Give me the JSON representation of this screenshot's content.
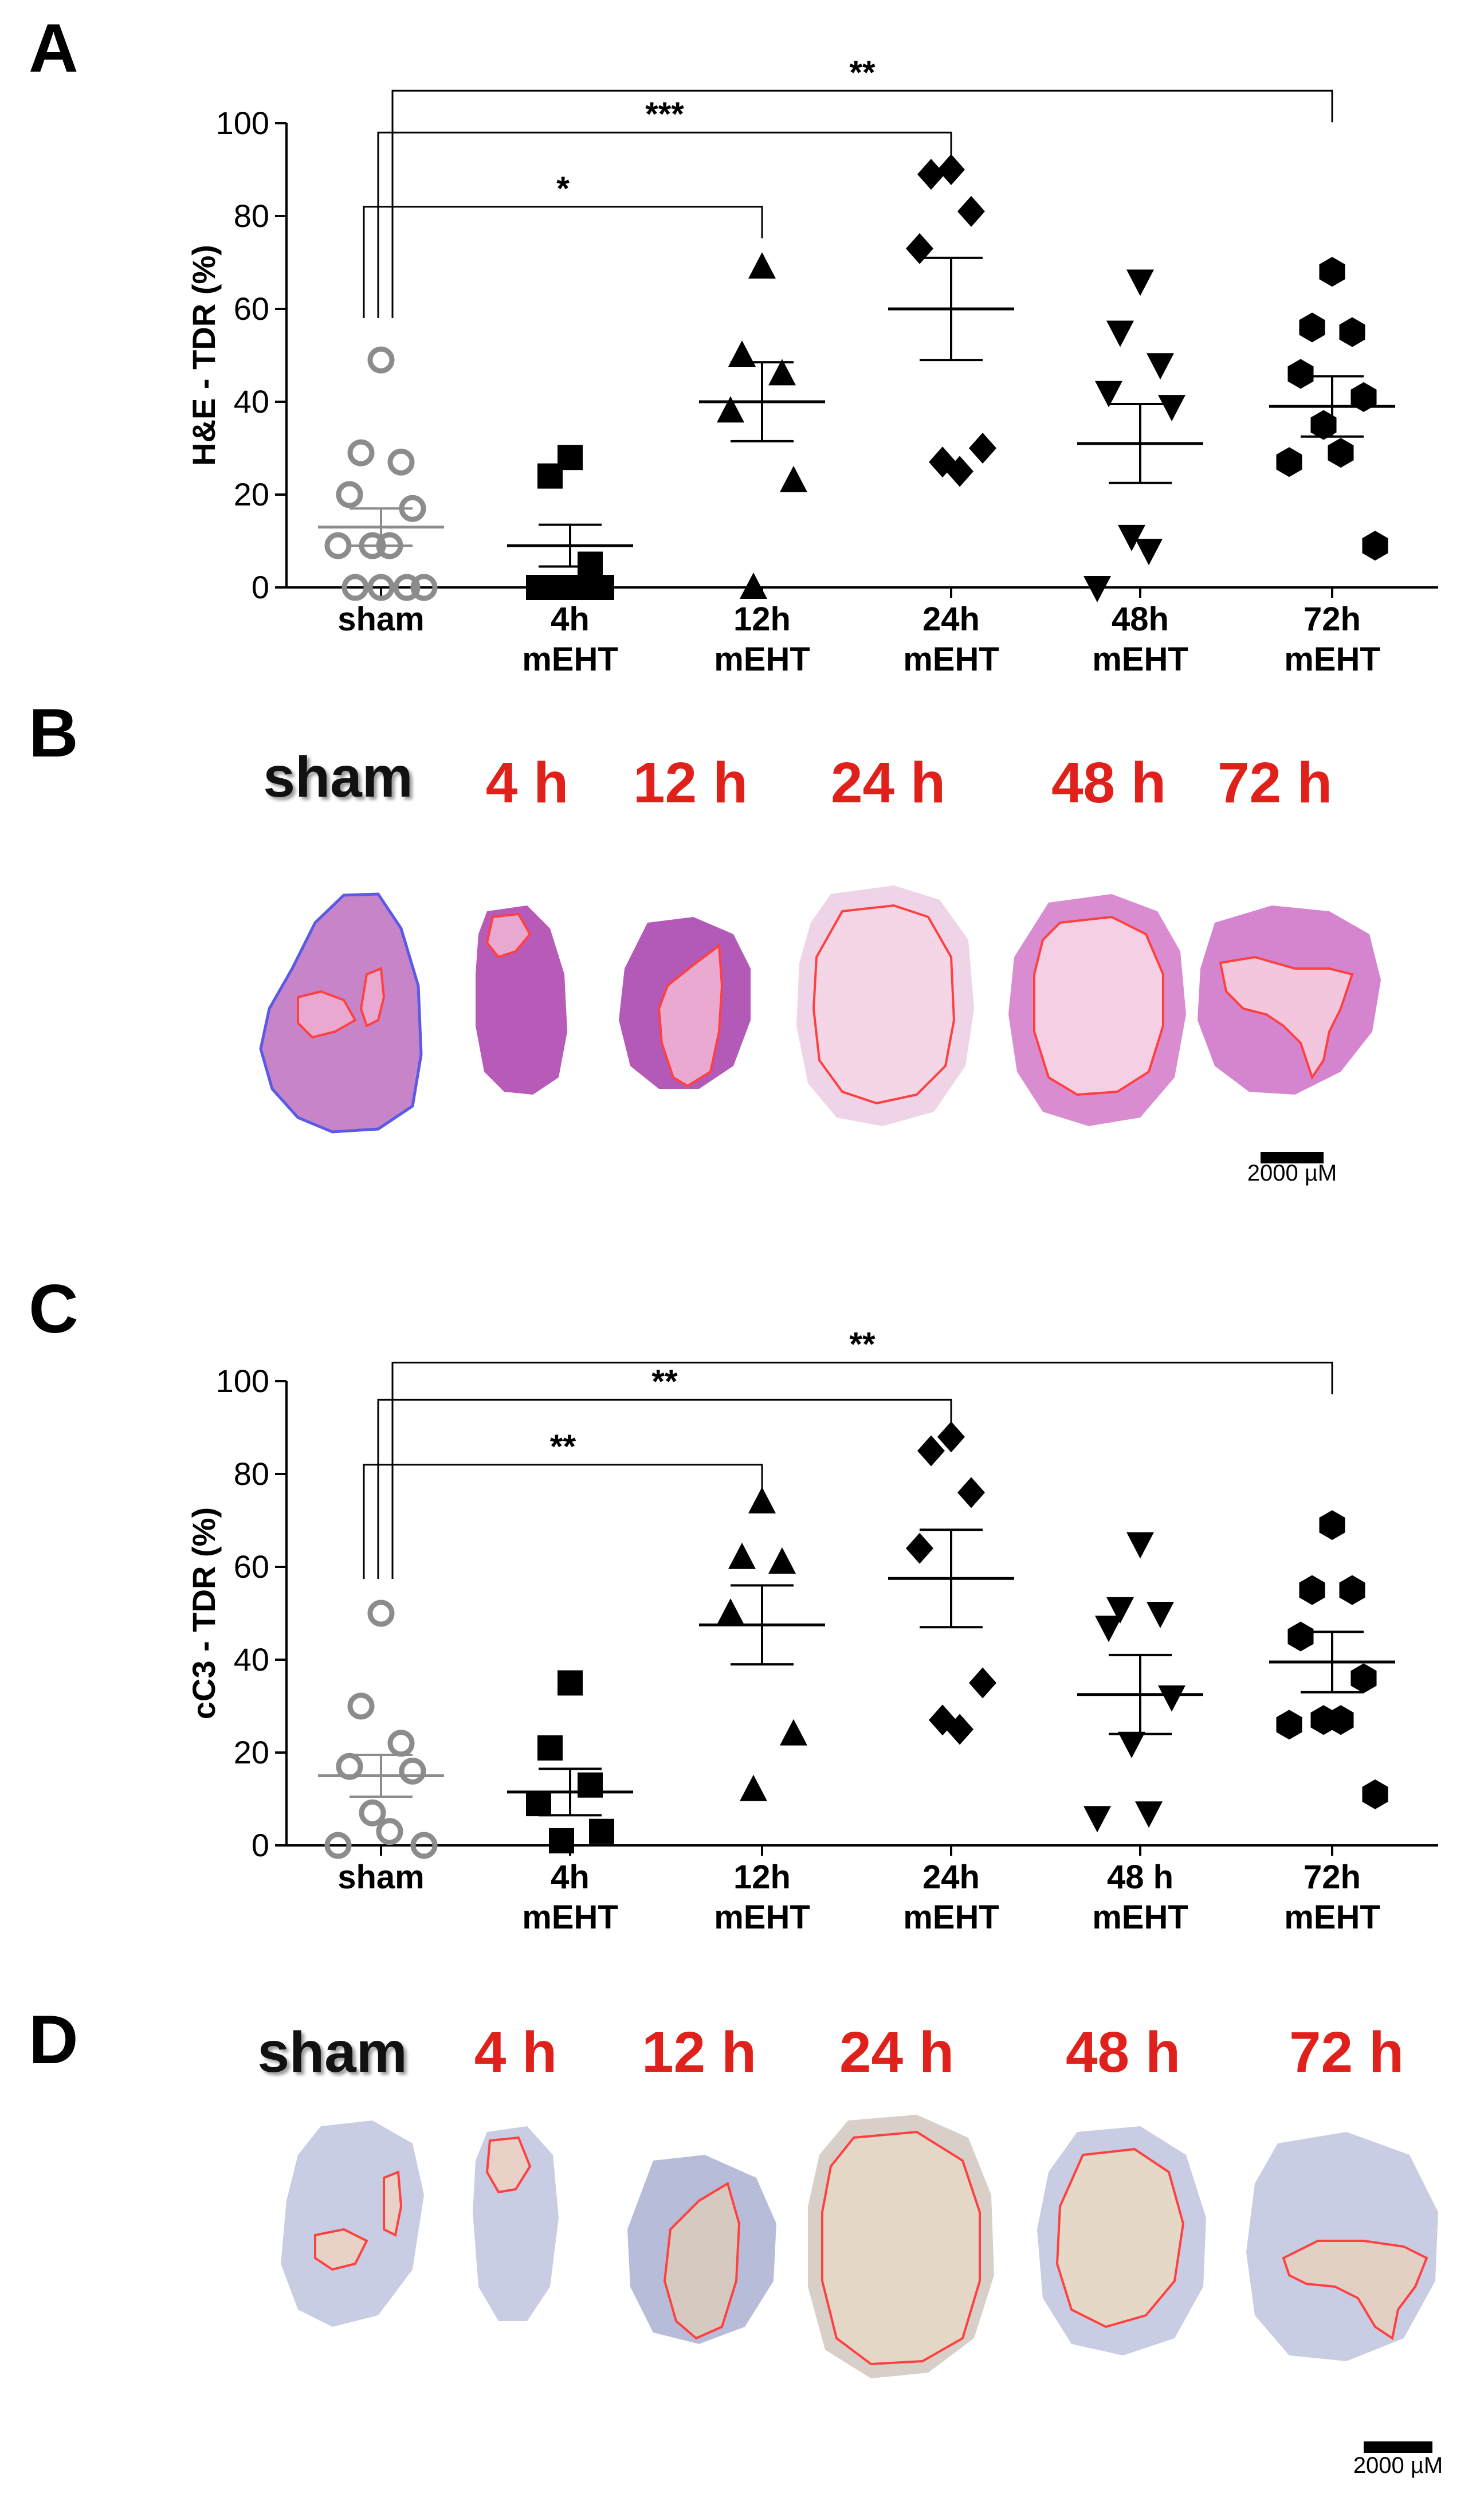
{
  "panels": {
    "a": "A",
    "b": "B",
    "c": "C",
    "d": "D"
  },
  "colors": {
    "sham": "#8c8c8c",
    "treated": "#000000",
    "time_red": "#e0201b",
    "time_black": "#111111",
    "outline_red": "#ff4040",
    "outline_blue": "#5a5ae6"
  },
  "tissue_labels": {
    "b": [
      "sham",
      "4 h",
      "12 h",
      "24 h",
      "48 h",
      "72 h"
    ],
    "d": [
      "sham",
      "4 h",
      "12 h",
      "24 h",
      "48 h",
      "72 h"
    ]
  },
  "scale_bars": {
    "b": "2000 µM",
    "d": "2000 µM"
  },
  "chart_data": [
    {
      "type": "scatter",
      "panel": "A",
      "ylabel": "H&E - TDR (%)",
      "ylim": [
        0,
        100
      ],
      "yticks": [
        0,
        20,
        40,
        60,
        80,
        100
      ],
      "categories": [
        {
          "line1": "sham",
          "line2": ""
        },
        {
          "line1": "4h",
          "line2": "mEHT"
        },
        {
          "line1": "12h",
          "line2": "mEHT"
        },
        {
          "line1": "24h",
          "line2": "mEHT"
        },
        {
          "line1": "48h",
          "line2": "mEHT"
        },
        {
          "line1": "72h",
          "line2": "mEHT"
        }
      ],
      "series": [
        {
          "name": "sham",
          "marker": "open-circle",
          "points": [
            49,
            29,
            27,
            20,
            17,
            9,
            9,
            9,
            0,
            0,
            0,
            0
          ],
          "mean": 13,
          "sem": 4
        },
        {
          "name": "4h mEHT",
          "marker": "square",
          "points": [
            28,
            24,
            5,
            0,
            0,
            0,
            0
          ],
          "mean": 9,
          "sem": 4.5
        },
        {
          "name": "12h mEHT",
          "marker": "triangle-up",
          "points": [
            69,
            50,
            46,
            38,
            23,
            0
          ],
          "mean": 40,
          "sem": 8.5
        },
        {
          "name": "24h mEHT",
          "marker": "diamond",
          "points": [
            90,
            89,
            81,
            73,
            30,
            27,
            25
          ],
          "mean": 60,
          "sem": 11
        },
        {
          "name": "48h mEHT",
          "marker": "triangle-down",
          "points": [
            66,
            55,
            48,
            42,
            39,
            11,
            8,
            0
          ],
          "mean": 31,
          "sem": 8.5
        },
        {
          "name": "72h mEHT",
          "marker": "hexagon",
          "points": [
            68,
            56,
            55,
            46,
            41,
            35,
            29,
            27,
            9
          ],
          "mean": 39,
          "sem": 6.5
        }
      ],
      "significance": [
        {
          "from": "sham",
          "to": "12h mEHT",
          "label": "*",
          "level": 82
        },
        {
          "from": "sham",
          "to": "24h mEHT",
          "label": "***",
          "level": 98
        },
        {
          "from": "sham",
          "to": "72h mEHT",
          "label": "**",
          "level": 107
        }
      ]
    },
    {
      "type": "scatter",
      "panel": "C",
      "ylabel": "cC3 - TDR (%)",
      "ylim": [
        0,
        100
      ],
      "yticks": [
        0,
        20,
        40,
        60,
        80,
        100
      ],
      "categories": [
        {
          "line1": "sham",
          "line2": ""
        },
        {
          "line1": "4h",
          "line2": "mEHT"
        },
        {
          "line1": "12h",
          "line2": "mEHT"
        },
        {
          "line1": "24h",
          "line2": "mEHT"
        },
        {
          "line1": "48 h",
          "line2": "mEHT"
        },
        {
          "line1": "72h",
          "line2": "mEHT"
        }
      ],
      "series": [
        {
          "name": "sham",
          "marker": "open-circle",
          "points": [
            50,
            30,
            22,
            17,
            16,
            7,
            3,
            0,
            0
          ],
          "mean": 15,
          "sem": 4.5
        },
        {
          "name": "4h mEHT",
          "marker": "square",
          "points": [
            35,
            21,
            13,
            9,
            3,
            1
          ],
          "mean": 11.5,
          "sem": 5
        },
        {
          "name": "12h mEHT",
          "marker": "triangle-up",
          "points": [
            74,
            62,
            61,
            50,
            24,
            12
          ],
          "mean": 47.5,
          "sem": 8.5
        },
        {
          "name": "24h mEHT",
          "marker": "diamond",
          "points": [
            88,
            85,
            76,
            64,
            35,
            27,
            25
          ],
          "mean": 57.5,
          "sem": 10.5
        },
        {
          "name": "48 h mEHT",
          "marker": "triangle-down",
          "points": [
            65,
            51,
            50,
            47,
            32,
            22,
            7,
            6
          ],
          "mean": 32.5,
          "sem": 8.5
        },
        {
          "name": "72h mEHT",
          "marker": "hexagon",
          "points": [
            69,
            55,
            55,
            45,
            36,
            27,
            27,
            26,
            11
          ],
          "mean": 39.5,
          "sem": 6.5
        }
      ],
      "significance": [
        {
          "from": "sham",
          "to": "12h mEHT",
          "label": "**",
          "level": 82
        },
        {
          "from": "sham",
          "to": "24h mEHT",
          "label": "**",
          "level": 96
        },
        {
          "from": "sham",
          "to": "72h mEHT",
          "label": "**",
          "level": 104
        }
      ]
    }
  ]
}
